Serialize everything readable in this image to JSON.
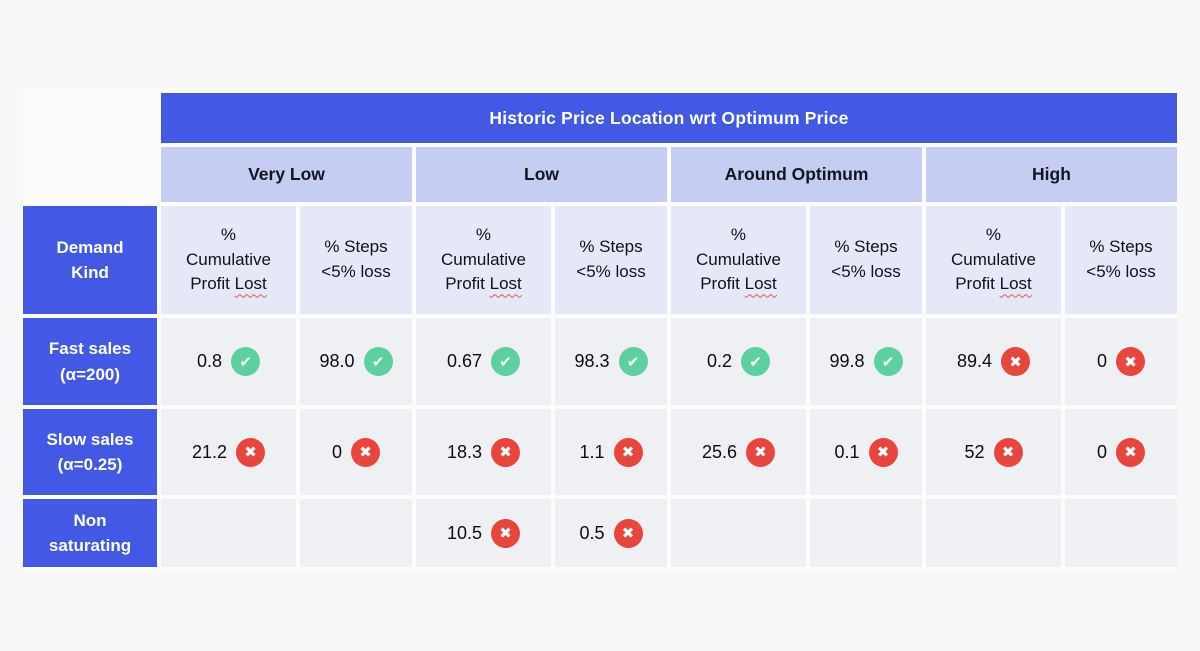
{
  "colors": {
    "primary_blue": "#4359e6",
    "group_header_lavender": "#c5cdf2",
    "column_header_lavender": "#e5e8f7",
    "data_cell_gray": "#eef0f4",
    "check_green": "#5ecf9e",
    "cross_red": "#e8453e",
    "spellcheck_wavy_red": "#dd5a4b",
    "page_background": "#f8f8fa"
  },
  "chart_data": {
    "type": "table",
    "title": "Historic Price Location wrt Optimum Price",
    "row_header": "Demand Kind",
    "column_groups": [
      "Very Low",
      "Low",
      "Around Optimum",
      "High"
    ],
    "sub_columns": [
      "% Cumulative Profit Lost",
      "% Steps <5% loss"
    ],
    "rows": [
      {
        "label": "Fast sales (α=200)",
        "cells": [
          {
            "value": "0.8",
            "status": "pass"
          },
          {
            "value": "98.0",
            "status": "pass"
          },
          {
            "value": "0.67",
            "status": "pass"
          },
          {
            "value": "98.3",
            "status": "pass"
          },
          {
            "value": "0.2",
            "status": "pass"
          },
          {
            "value": "99.8",
            "status": "pass"
          },
          {
            "value": "89.4",
            "status": "fail"
          },
          {
            "value": "0",
            "status": "fail"
          }
        ]
      },
      {
        "label": "Slow sales (α=0.25)",
        "cells": [
          {
            "value": "21.2",
            "status": "fail"
          },
          {
            "value": "0",
            "status": "fail"
          },
          {
            "value": "18.3",
            "status": "fail"
          },
          {
            "value": "1.1",
            "status": "fail"
          },
          {
            "value": "25.6",
            "status": "fail"
          },
          {
            "value": "0.1",
            "status": "fail"
          },
          {
            "value": "52",
            "status": "fail"
          },
          {
            "value": "0",
            "status": "fail"
          }
        ]
      },
      {
        "label": "Non saturating",
        "cells": [
          {
            "value": "",
            "status": "none"
          },
          {
            "value": "",
            "status": "none"
          },
          {
            "value": "10.5",
            "status": "fail"
          },
          {
            "value": "0.5",
            "status": "fail"
          },
          {
            "value": "",
            "status": "none"
          },
          {
            "value": "",
            "status": "none"
          },
          {
            "value": "",
            "status": "none"
          },
          {
            "value": "",
            "status": "none"
          }
        ]
      }
    ]
  },
  "display": {
    "corner_label": "Demand\nKind",
    "row_labels": [
      "Fast sales\n(α=200)",
      "Slow sales\n(α=0.25)",
      "Non\nsaturating"
    ],
    "metric_line1": "%",
    "metric_line2": "Cumulative",
    "metric_line3_prefix": "Profit",
    "metric_underlined": "Lost",
    "steps_line1": "% Steps",
    "steps_line2": "<5% loss",
    "check_glyph": "✔",
    "cross_glyph": "✖"
  }
}
